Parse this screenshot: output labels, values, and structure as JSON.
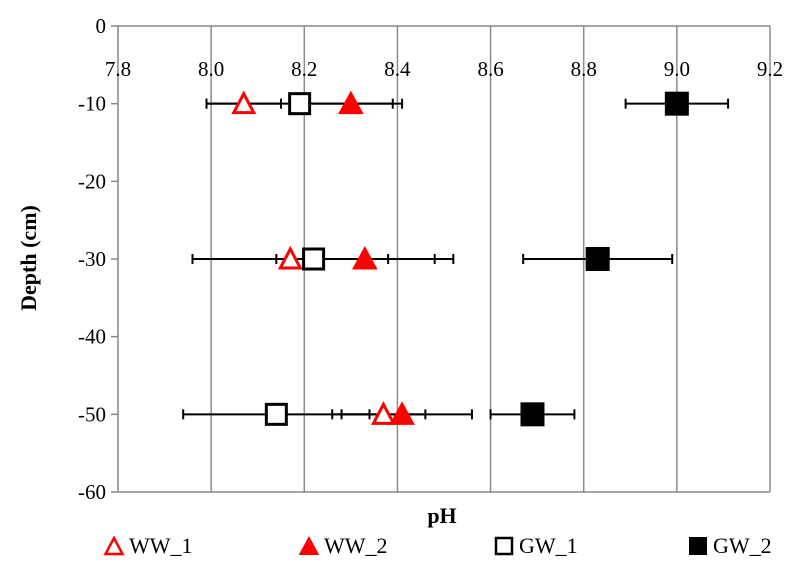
{
  "chart_data": {
    "type": "scatter",
    "title": "",
    "xlabel": "pH",
    "ylabel": "Depth (cm)",
    "xlim": [
      7.8,
      9.2
    ],
    "ylim": [
      -60,
      0
    ],
    "x_ticks": [
      "7.8",
      "8.0",
      "8.2",
      "8.4",
      "8.6",
      "8.8",
      "9.0",
      "9.2"
    ],
    "y_ticks": [
      "0",
      "-10",
      "-20",
      "-30",
      "-40",
      "-50",
      "-60"
    ],
    "grid": "vertical gridlines",
    "legend_position": "bottom",
    "series": [
      {
        "name": "WW_1",
        "marker": "triangle-open",
        "color": "#ff0000",
        "points": [
          {
            "x": 8.07,
            "y": -10,
            "err": 0.08
          },
          {
            "x": 8.17,
            "y": -30,
            "err": 0.21
          },
          {
            "x": 8.37,
            "y": -50,
            "err": 0.09
          }
        ]
      },
      {
        "name": "WW_2",
        "marker": "triangle-filled",
        "color": "#ff0000",
        "points": [
          {
            "x": 8.3,
            "y": -10,
            "err": 0.11
          },
          {
            "x": 8.33,
            "y": -30,
            "err": 0.19
          },
          {
            "x": 8.41,
            "y": -50,
            "err": 0.15
          }
        ]
      },
      {
        "name": "GW_1",
        "marker": "square-open",
        "color": "#000000",
        "points": [
          {
            "x": 8.19,
            "y": -10,
            "err": 0.2
          },
          {
            "x": 8.22,
            "y": -30,
            "err": 0.26
          },
          {
            "x": 8.14,
            "y": -50,
            "err": 0.2
          }
        ]
      },
      {
        "name": "GW_2",
        "marker": "square-filled",
        "color": "#000000",
        "points": [
          {
            "x": 9.0,
            "y": -10,
            "err": 0.11
          },
          {
            "x": 8.83,
            "y": -30,
            "err": 0.16
          },
          {
            "x": 8.69,
            "y": -50,
            "err": 0.09
          }
        ]
      }
    ]
  }
}
